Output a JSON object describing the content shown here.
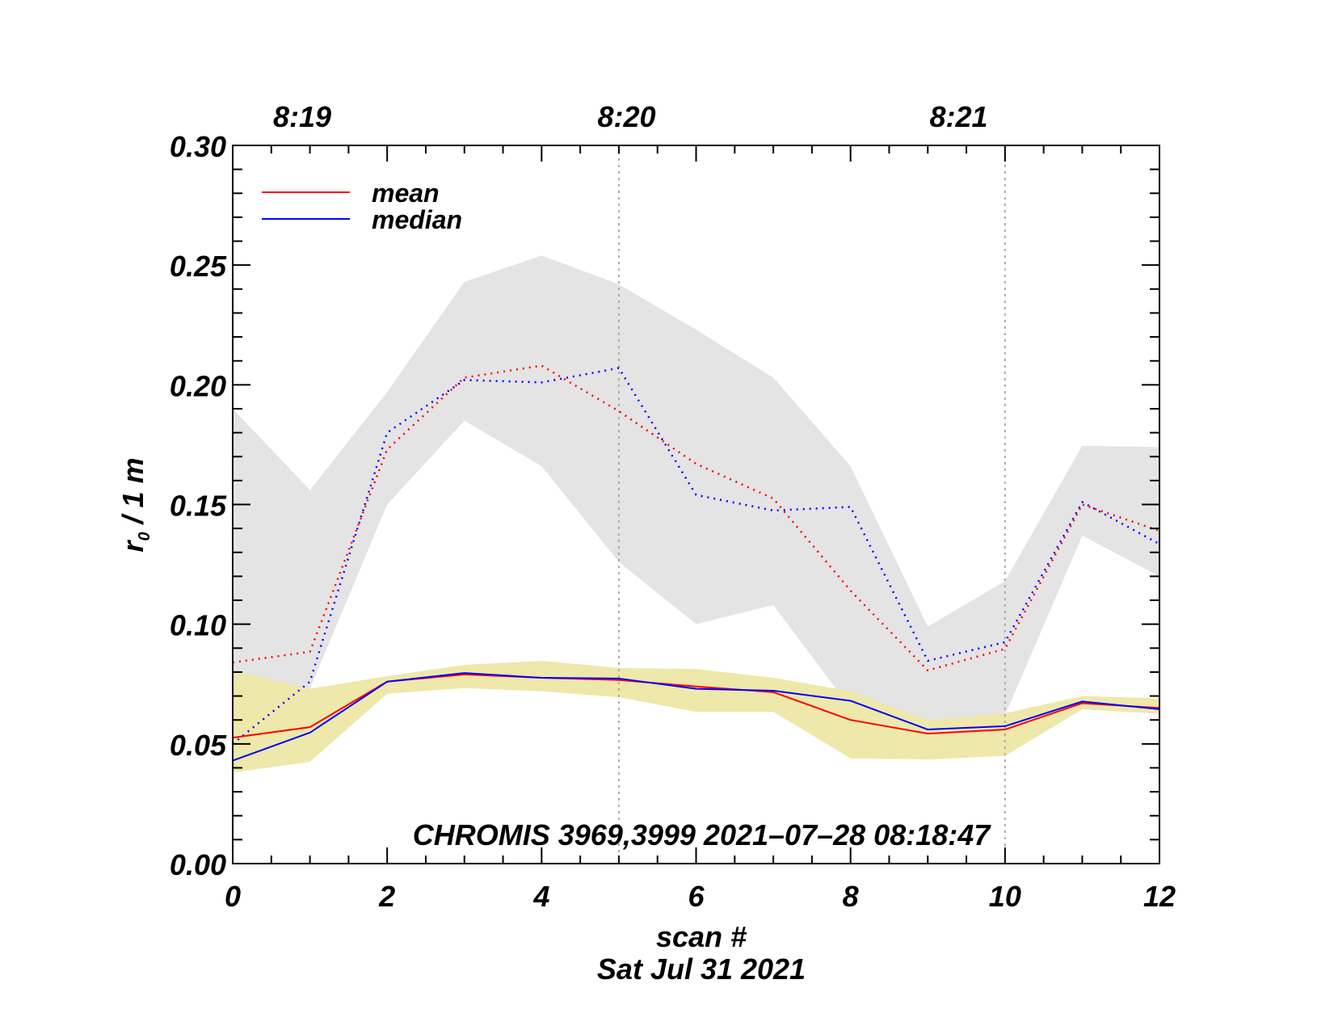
{
  "chart_data": {
    "type": "line",
    "title": "",
    "xlabel": "scan #",
    "date_label": "Sat Jul 31 2021",
    "ylabel_main": "r",
    "ylabel_sub": "0",
    "ylabel_rest": " / 1 m",
    "annotation": "CHROMIS 3969,3999 2021–07–28 08:18:47",
    "xlim": [
      0,
      12
    ],
    "ylim": [
      0.0,
      0.3
    ],
    "x_ticks": [
      0,
      2,
      4,
      6,
      8,
      10,
      12
    ],
    "x_tick_labels": [
      "0",
      "2",
      "4",
      "6",
      "8",
      "10",
      "12"
    ],
    "y_ticks": [
      0.0,
      0.05,
      0.1,
      0.15,
      0.2,
      0.25,
      0.3
    ],
    "y_tick_labels": [
      "0.00",
      "0.05",
      "0.10",
      "0.15",
      "0.20",
      "0.25",
      "0.30"
    ],
    "top_axis": {
      "labels": [
        {
          "text": "8:19",
          "x": 0.9
        },
        {
          "text": "8:20",
          "x": 5.1
        },
        {
          "text": "8:21",
          "x": 9.4
        }
      ]
    },
    "vertical_markers": [
      5,
      10
    ],
    "legend": {
      "position": "top-left",
      "entries": [
        {
          "label": "mean",
          "color": "#ff0000"
        },
        {
          "label": "median",
          "color": "#0000ff"
        }
      ]
    },
    "x": [
      0,
      1,
      2,
      3,
      4,
      5,
      6,
      7,
      8,
      9,
      10,
      11,
      12
    ],
    "bands": [
      {
        "name": "range-dotted",
        "color": "#e4e4e4",
        "upper": [
          0.19,
          0.156,
          0.197,
          0.243,
          0.254,
          0.242,
          0.223,
          0.203,
          0.166,
          0.099,
          0.118,
          0.1745,
          0.174
        ],
        "lower": [
          0.07,
          0.073,
          0.15,
          0.185,
          0.166,
          0.126,
          0.1,
          0.108,
          0.065,
          0.06,
          0.062,
          0.137,
          0.12
        ]
      },
      {
        "name": "range-solid",
        "color": "#eee8aa",
        "upper": [
          0.0807,
          0.073,
          0.0783,
          0.083,
          0.0847,
          0.0817,
          0.0813,
          0.0776,
          0.072,
          0.06,
          0.0628,
          0.07,
          0.069
        ],
        "lower": [
          0.038,
          0.0425,
          0.071,
          0.0733,
          0.072,
          0.0695,
          0.0634,
          0.0634,
          0.044,
          0.0435,
          0.045,
          0.0645,
          0.0625
        ]
      }
    ],
    "series": [
      {
        "name": "mean (dotted)",
        "color": "#ff0000",
        "style": "dotted",
        "values": [
          0.084,
          0.0885,
          0.173,
          0.203,
          0.208,
          0.189,
          0.167,
          0.1525,
          0.114,
          0.0807,
          0.0897,
          0.15,
          0.139
        ]
      },
      {
        "name": "median (dotted)",
        "color": "#0000ff",
        "style": "dotted",
        "values": [
          0.05,
          0.076,
          0.18,
          0.202,
          0.201,
          0.207,
          0.154,
          0.1475,
          0.149,
          0.0847,
          0.0925,
          0.151,
          0.1335
        ]
      },
      {
        "name": "mean",
        "color": "#ff0000",
        "style": "solid",
        "values": [
          0.0526,
          0.057,
          0.076,
          0.079,
          0.0776,
          0.0767,
          0.074,
          0.0716,
          0.06,
          0.0543,
          0.056,
          0.067,
          0.065
        ]
      },
      {
        "name": "median",
        "color": "#0000ff",
        "style": "solid",
        "values": [
          0.043,
          0.0547,
          0.076,
          0.0796,
          0.0776,
          0.0773,
          0.073,
          0.0722,
          0.068,
          0.056,
          0.0574,
          0.0677,
          0.0645
        ]
      }
    ]
  }
}
